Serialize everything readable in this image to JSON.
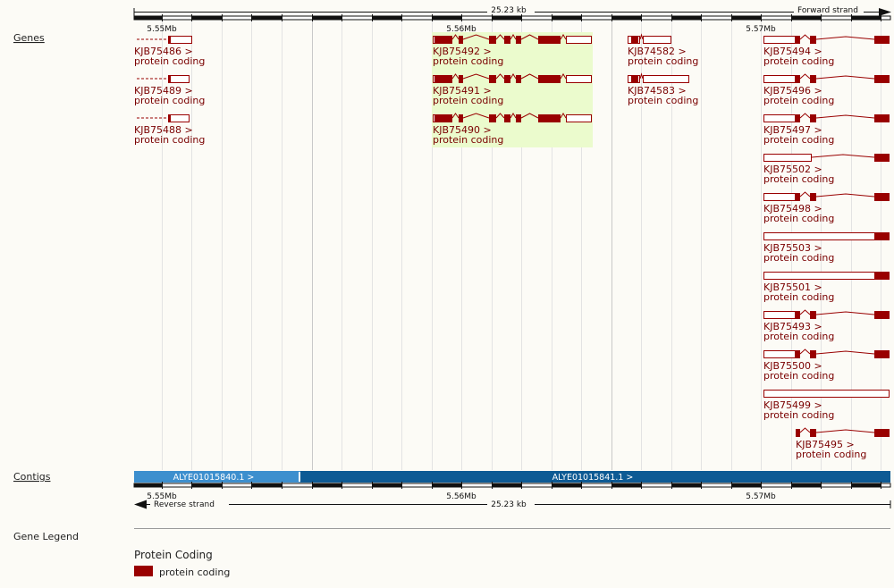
{
  "track_labels": {
    "genes": "Genes",
    "contigs": "Contigs",
    "legend": "Gene Legend"
  },
  "top_scale": {
    "length": "25.23 kb",
    "strand": "Forward strand",
    "ticks": [
      "5.55Mb",
      "5.56Mb",
      "5.57Mb"
    ]
  },
  "bottom_scale": {
    "length": "25.23 kb",
    "strand": "Reverse strand",
    "ticks": [
      "5.55Mb",
      "5.56Mb",
      "5.57Mb"
    ]
  },
  "contigs": [
    "ALYE01015840.1 >",
    "ALYE01015841.1 >"
  ],
  "genes": [
    {
      "name": "KJB75486 >",
      "biotype": "protein coding"
    },
    {
      "name": "KJB75489 >",
      "biotype": "protein coding"
    },
    {
      "name": "KJB75488 >",
      "biotype": "protein coding"
    },
    {
      "name": "KJB75492 >",
      "biotype": "protein coding"
    },
    {
      "name": "KJB75491 >",
      "biotype": "protein coding"
    },
    {
      "name": "KJB75490 >",
      "biotype": "protein coding"
    },
    {
      "name": "KJB74582 >",
      "biotype": "protein coding"
    },
    {
      "name": "KJB74583 >",
      "biotype": "protein coding"
    },
    {
      "name": "KJB75494 >",
      "biotype": "protein coding"
    },
    {
      "name": "KJB75496 >",
      "biotype": "protein coding"
    },
    {
      "name": "KJB75497 >",
      "biotype": "protein coding"
    },
    {
      "name": "KJB75502 >",
      "biotype": "protein coding"
    },
    {
      "name": "KJB75498 >",
      "biotype": "protein coding"
    },
    {
      "name": "KJB75503 >",
      "biotype": "protein coding"
    },
    {
      "name": "KJB75501 >",
      "biotype": "protein coding"
    },
    {
      "name": "KJB75493 >",
      "biotype": "protein coding"
    },
    {
      "name": "KJB75500 >",
      "biotype": "protein coding"
    },
    {
      "name": "KJB75499 >",
      "biotype": "protein coding"
    },
    {
      "name": "KJB75495 >",
      "biotype": "protein coding"
    }
  ],
  "legend": {
    "heading": "Protein Coding",
    "item": "protein coding",
    "color": "#990000"
  },
  "colors": {
    "exon": "#990000",
    "highlight": "#ebfbcd",
    "contig_a": "#3d8fce",
    "contig_b": "#0d5a94"
  }
}
